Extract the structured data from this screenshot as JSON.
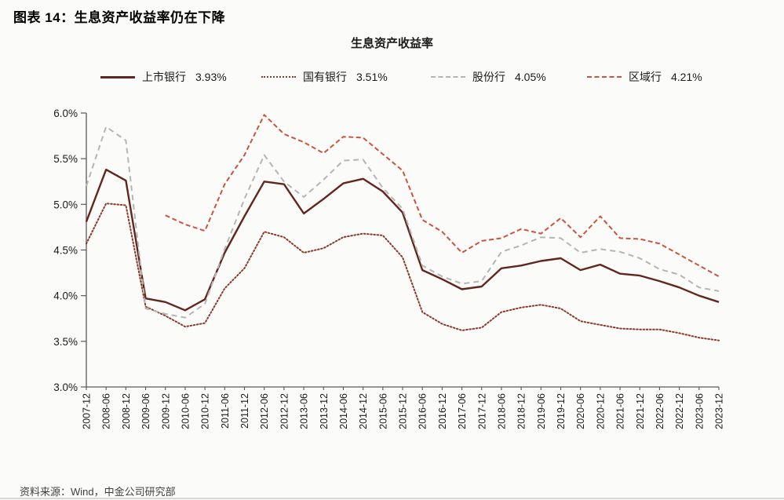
{
  "figure": {
    "title": "图表 14：生息资产收益率仍在下降"
  },
  "source": {
    "text": "资料来源：Wind，中金公司研究部"
  },
  "chart_data": {
    "type": "line",
    "title": "生息资产收益率",
    "grid": false,
    "legend_position": "top",
    "categories": [
      "2007-12",
      "2008-06",
      "2008-12",
      "2009-06",
      "2009-12",
      "2010-06",
      "2010-12",
      "2011-06",
      "2011-12",
      "2012-06",
      "2012-12",
      "2013-06",
      "2013-12",
      "2014-06",
      "2014-12",
      "2015-06",
      "2015-12",
      "2016-06",
      "2016-12",
      "2017-06",
      "2017-12",
      "2018-06",
      "2018-12",
      "2019-06",
      "2019-12",
      "2020-06",
      "2020-12",
      "2021-06",
      "2021-12",
      "2022-06",
      "2022-12",
      "2023-06",
      "2023-12"
    ],
    "y_axis": {
      "min": 3.0,
      "max": 6.0,
      "step": 0.5,
      "tick_labels": [
        "6.0%",
        "5.5%",
        "5.0%",
        "4.5%",
        "4.0%",
        "3.5%",
        "3.0%"
      ]
    },
    "series": [
      {
        "name": "上市银行",
        "current": "3.93%",
        "color": "#63261d",
        "style": "solid",
        "values": [
          4.81,
          5.38,
          5.26,
          3.97,
          3.93,
          3.84,
          3.96,
          4.47,
          4.87,
          5.25,
          5.22,
          4.9,
          5.06,
          5.23,
          5.28,
          5.14,
          4.91,
          4.28,
          4.18,
          4.07,
          4.1,
          4.3,
          4.33,
          4.38,
          4.41,
          4.28,
          4.34,
          4.24,
          4.22,
          4.16,
          4.09,
          4.0,
          3.93
        ]
      },
      {
        "name": "国有银行",
        "current": "3.51%",
        "color": "#8c3b29",
        "style": "dotted",
        "values": [
          4.57,
          5.01,
          4.99,
          3.88,
          3.78,
          3.66,
          3.7,
          4.08,
          4.3,
          4.7,
          4.64,
          4.47,
          4.52,
          4.64,
          4.68,
          4.66,
          4.42,
          3.82,
          3.69,
          3.62,
          3.65,
          3.82,
          3.87,
          3.9,
          3.86,
          3.72,
          3.68,
          3.64,
          3.63,
          3.63,
          3.59,
          3.54,
          3.51
        ]
      },
      {
        "name": "股份行",
        "current": "4.05%",
        "color": "#b5b5b5",
        "style": "dashed-long",
        "values": [
          5.2,
          5.85,
          5.7,
          3.86,
          3.8,
          3.76,
          3.91,
          4.51,
          5.06,
          5.54,
          5.25,
          5.08,
          5.27,
          5.48,
          5.49,
          5.18,
          4.95,
          4.33,
          4.21,
          4.13,
          4.16,
          4.48,
          4.55,
          4.64,
          4.63,
          4.47,
          4.51,
          4.48,
          4.41,
          4.29,
          4.23,
          4.09,
          4.05
        ]
      },
      {
        "name": "区域行",
        "current": "4.21%",
        "color": "#c9553e",
        "style": "dashed",
        "values": [
          null,
          null,
          null,
          null,
          4.88,
          4.78,
          4.71,
          5.22,
          5.54,
          5.98,
          5.77,
          5.68,
          5.56,
          5.74,
          5.73,
          5.55,
          5.37,
          4.83,
          4.7,
          4.47,
          4.6,
          4.63,
          4.73,
          4.68,
          4.85,
          4.64,
          4.87,
          4.63,
          4.62,
          4.57,
          4.45,
          4.33,
          4.21
        ]
      }
    ]
  }
}
